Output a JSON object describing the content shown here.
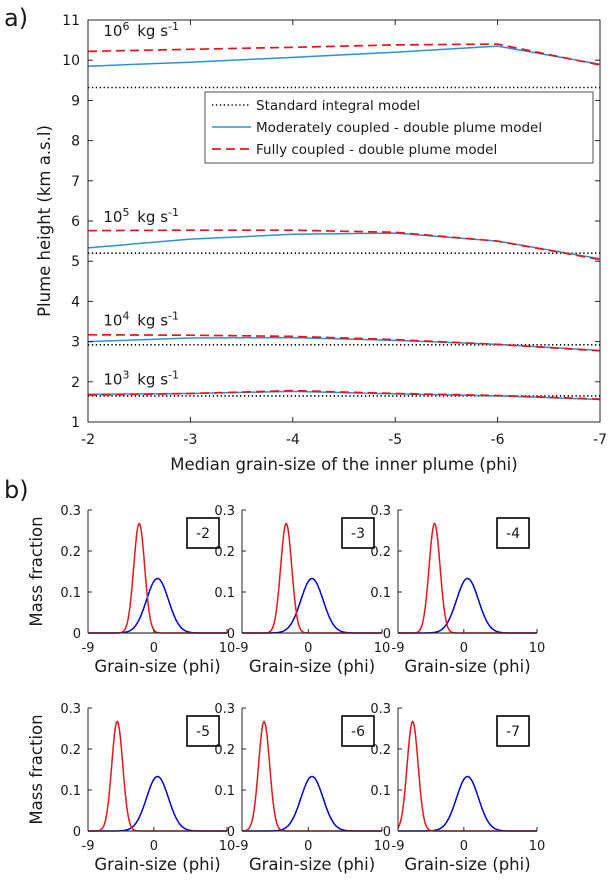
{
  "panel_labels": {
    "a": "a)",
    "b": "b)"
  },
  "chart_data": [
    {
      "type": "line",
      "xlabel": "Median grain-size of the inner plume (phi)",
      "ylabel": "Plume height (km a.s.l)",
      "xlim": [
        -2,
        -7
      ],
      "ylim": [
        1,
        11
      ],
      "x_reversed": true,
      "xticks": [
        "-2",
        "-3",
        "-4",
        "-5",
        "-6",
        "-7"
      ],
      "yticks": [
        "1",
        "2",
        "3",
        "4",
        "5",
        "6",
        "7",
        "8",
        "9",
        "10",
        "11"
      ],
      "legend": {
        "position": "upper-right",
        "entries": [
          "Standard integral model",
          "Moderately coupled - double plume model",
          "Fully coupled - double plume model"
        ]
      },
      "groups": [
        {
          "label": "10^6 kg s^-1",
          "label_base": "10",
          "label_exp": "6",
          "label_unit": "kg s",
          "label_unit_exp": "-1",
          "label_pos": [
            -2.15,
            10.6
          ],
          "x": [
            -2,
            -3,
            -4,
            -5,
            -6,
            -7
          ],
          "standard": [
            9.32,
            9.32,
            9.32,
            9.32,
            9.32,
            9.32
          ],
          "moderately": [
            9.85,
            9.95,
            10.07,
            10.2,
            10.35,
            9.9
          ],
          "fully": [
            10.22,
            10.27,
            10.32,
            10.38,
            10.4,
            9.88
          ]
        },
        {
          "label": "10^5 kg s^-1",
          "label_base": "10",
          "label_exp": "5",
          "label_unit": "kg s",
          "label_unit_exp": "-1",
          "label_pos": [
            -2.15,
            5.98
          ],
          "x": [
            -2,
            -3,
            -4,
            -5,
            -6,
            -7
          ],
          "standard": [
            5.2,
            5.2,
            5.2,
            5.2,
            5.2,
            5.2
          ],
          "moderately": [
            5.33,
            5.55,
            5.67,
            5.7,
            5.5,
            5.06
          ],
          "fully": [
            5.76,
            5.77,
            5.77,
            5.72,
            5.5,
            5.04
          ]
        },
        {
          "label": "10^4 kg s^-1",
          "label_base": "10",
          "label_exp": "4",
          "label_unit": "kg s",
          "label_unit_exp": "-1",
          "label_pos": [
            -2.15,
            3.4
          ],
          "x": [
            -2,
            -3,
            -4,
            -5,
            -6,
            -7
          ],
          "standard": [
            2.92,
            2.92,
            2.92,
            2.92,
            2.92,
            2.92
          ],
          "moderately": [
            3.0,
            3.09,
            3.1,
            3.03,
            2.93,
            2.78
          ],
          "fully": [
            3.17,
            3.16,
            3.13,
            3.05,
            2.93,
            2.77
          ]
        },
        {
          "label": "10^3 kg s^-1",
          "label_base": "10",
          "label_exp": "3",
          "label_unit": "kg s",
          "label_unit_exp": "-1",
          "label_pos": [
            -2.15,
            1.93
          ],
          "x": [
            -2,
            -3,
            -4,
            -5,
            -6,
            -7
          ],
          "standard": [
            1.65,
            1.65,
            1.65,
            1.65,
            1.65,
            1.65
          ],
          "moderately": [
            1.69,
            1.71,
            1.76,
            1.7,
            1.65,
            1.56
          ],
          "fully": [
            1.67,
            1.71,
            1.78,
            1.71,
            1.66,
            1.57
          ]
        }
      ],
      "colors": {
        "standard": "#000000",
        "moderately": "#2f8fd8",
        "fully": "#e8151b"
      }
    },
    {
      "type": "line",
      "layout": "small-multiples",
      "xlabel": "Grain-size (phi)",
      "ylabel": "Mass fraction",
      "xlim": [
        -9,
        10
      ],
      "ylim": [
        0,
        0.3
      ],
      "xticks": [
        "-9",
        "0",
        "10"
      ],
      "yticks": [
        "0",
        "0.1",
        "0.2",
        "0.3"
      ],
      "outer": {
        "mean": 0.5,
        "sigma": 1.5,
        "peak": 0.133,
        "color": "#0000d8"
      },
      "inner_peak": 0.267,
      "inner_sigma": 0.75,
      "inner_color": "#e8151b",
      "background_color": "#8a8a8a",
      "panels": [
        {
          "label": "-2",
          "inner_mean": -2
        },
        {
          "label": "-3",
          "inner_mean": -3
        },
        {
          "label": "-4",
          "inner_mean": -4
        },
        {
          "label": "-5",
          "inner_mean": -5
        },
        {
          "label": "-6",
          "inner_mean": -6
        },
        {
          "label": "-7",
          "inner_mean": -7
        }
      ]
    }
  ]
}
